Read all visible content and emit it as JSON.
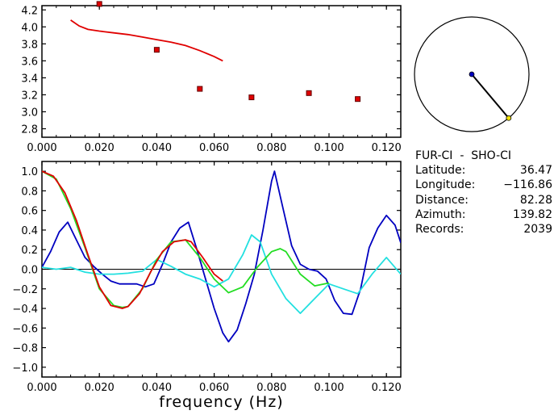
{
  "station_info": {
    "title": "FUR-CI  -  SHO-CI",
    "rows": [
      {
        "label": "Latitude:",
        "value": "36.47"
      },
      {
        "label": "Longitude:",
        "value": "−116.86"
      },
      {
        "label": "Distance:",
        "value": "82.28"
      },
      {
        "label": "Azimuth:",
        "value": "139.82"
      },
      {
        "label": "Records:",
        "value": "2039"
      }
    ]
  },
  "colors": {
    "red": "#e00000",
    "blue": "#0000c0",
    "green": "#22dd22",
    "cyan": "#22e0e0",
    "axes": "#000000",
    "marker_yellow": "#f0e000"
  },
  "chart_data": [
    {
      "id": "top",
      "type": "scatter",
      "xlabel": "",
      "ylabel": "",
      "xlim": [
        0.0,
        0.125
      ],
      "ylim": [
        2.7,
        4.25
      ],
      "xticks": [
        "0.000",
        "0.020",
        "0.040",
        "0.060",
        "0.080",
        "0.100",
        "0.120"
      ],
      "xtick_values": [
        0.0,
        0.02,
        0.04,
        0.06,
        0.08,
        0.1,
        0.12
      ],
      "yticks": [
        "2.8",
        "3.0",
        "3.2",
        "3.4",
        "3.6",
        "3.8",
        "4.0",
        "4.2"
      ],
      "ytick_values": [
        2.8,
        3.0,
        3.2,
        3.4,
        3.6,
        3.8,
        4.0,
        4.2
      ],
      "grid": false,
      "points": [
        {
          "x": 0.02,
          "y": 4.27
        },
        {
          "x": 0.04,
          "y": 3.73
        },
        {
          "x": 0.055,
          "y": 3.27
        },
        {
          "x": 0.073,
          "y": 3.17
        },
        {
          "x": 0.093,
          "y": 3.22
        },
        {
          "x": 0.11,
          "y": 3.15
        }
      ],
      "curve": {
        "x": [
          0.01,
          0.013,
          0.016,
          0.02,
          0.025,
          0.03,
          0.035,
          0.04,
          0.045,
          0.05,
          0.055,
          0.06,
          0.063
        ],
        "y": [
          4.08,
          4.01,
          3.97,
          3.95,
          3.93,
          3.91,
          3.88,
          3.85,
          3.82,
          3.78,
          3.72,
          3.65,
          3.6
        ]
      }
    },
    {
      "id": "bottom",
      "type": "line",
      "xlabel": "frequency  (Hz)",
      "ylabel": "",
      "xlim": [
        0.0,
        0.125
      ],
      "ylim": [
        -1.1,
        1.1
      ],
      "xticks": [
        "0.000",
        "0.020",
        "0.040",
        "0.060",
        "0.080",
        "0.100",
        "0.120"
      ],
      "xtick_values": [
        0.0,
        0.02,
        0.04,
        0.06,
        0.08,
        0.1,
        0.12
      ],
      "yticks": [
        "1.0",
        "0.8",
        "0.6",
        "0.4",
        "0.2",
        "0.0",
        "−0.2",
        "−0.4",
        "−0.6",
        "−0.8",
        "−1.0"
      ],
      "ytick_values": [
        1.0,
        0.8,
        0.6,
        0.4,
        0.2,
        0.0,
        -0.2,
        -0.4,
        -0.6,
        -0.8,
        -1.0
      ],
      "grid": false,
      "zero_line": true,
      "series": [
        {
          "color": "#0000c0",
          "x": [
            0.0,
            0.003,
            0.006,
            0.009,
            0.012,
            0.015,
            0.018,
            0.021,
            0.024,
            0.027,
            0.03,
            0.033,
            0.036,
            0.039,
            0.042,
            0.045,
            0.048,
            0.051,
            0.054,
            0.057,
            0.06,
            0.063,
            0.065,
            0.068,
            0.071,
            0.074,
            0.077,
            0.08,
            0.081,
            0.084,
            0.087,
            0.09,
            0.093,
            0.096,
            0.099,
            0.102,
            0.105,
            0.108,
            0.111,
            0.114,
            0.117,
            0.12,
            0.123,
            0.125
          ],
          "y": [
            0.02,
            0.18,
            0.38,
            0.48,
            0.3,
            0.12,
            0.03,
            -0.05,
            -0.12,
            -0.15,
            -0.15,
            -0.15,
            -0.18,
            -0.15,
            0.05,
            0.28,
            0.42,
            0.48,
            0.2,
            -0.1,
            -0.4,
            -0.65,
            -0.74,
            -0.62,
            -0.35,
            -0.05,
            0.4,
            0.9,
            1.0,
            0.62,
            0.24,
            0.05,
            0.0,
            -0.02,
            -0.1,
            -0.32,
            -0.45,
            -0.46,
            -0.2,
            0.22,
            0.42,
            0.55,
            0.45,
            0.27
          ]
        },
        {
          "color": "#22e0e0",
          "x": [
            0.0,
            0.005,
            0.01,
            0.015,
            0.02,
            0.025,
            0.03,
            0.035,
            0.04,
            0.045,
            0.05,
            0.055,
            0.06,
            0.065,
            0.07,
            0.073,
            0.076,
            0.08,
            0.085,
            0.09,
            0.095,
            0.1,
            0.105,
            0.11,
            0.115,
            0.12,
            0.125
          ],
          "y": [
            0.02,
            0.0,
            0.02,
            -0.03,
            -0.05,
            -0.05,
            -0.04,
            -0.02,
            0.1,
            0.03,
            -0.05,
            -0.1,
            -0.18,
            -0.1,
            0.15,
            0.35,
            0.28,
            -0.05,
            -0.3,
            -0.45,
            -0.3,
            -0.15,
            -0.2,
            -0.25,
            -0.05,
            0.12,
            -0.05
          ]
        },
        {
          "color": "#22dd22",
          "x": [
            0.0,
            0.005,
            0.01,
            0.015,
            0.02,
            0.025,
            0.028,
            0.03,
            0.035,
            0.04,
            0.045,
            0.05,
            0.055,
            0.06,
            0.065,
            0.07,
            0.075,
            0.08,
            0.083,
            0.085,
            0.09,
            0.095,
            0.1
          ],
          "y": [
            1.0,
            0.92,
            0.62,
            0.22,
            -0.2,
            -0.37,
            -0.39,
            -0.38,
            -0.2,
            0.1,
            0.28,
            0.3,
            0.12,
            -0.1,
            -0.24,
            -0.18,
            0.02,
            0.18,
            0.21,
            0.18,
            -0.05,
            -0.17,
            -0.14
          ]
        },
        {
          "color": "#e00000",
          "x": [
            0.0,
            0.004,
            0.008,
            0.012,
            0.016,
            0.02,
            0.024,
            0.028,
            0.03,
            0.034,
            0.038,
            0.042,
            0.046,
            0.05,
            0.052,
            0.056,
            0.06,
            0.063
          ],
          "y": [
            1.0,
            0.95,
            0.78,
            0.5,
            0.15,
            -0.18,
            -0.37,
            -0.4,
            -0.38,
            -0.25,
            -0.02,
            0.18,
            0.28,
            0.3,
            0.28,
            0.12,
            -0.05,
            -0.12
          ]
        }
      ]
    }
  ],
  "azimuth_dial": {
    "azimuth_deg": 139.82
  }
}
